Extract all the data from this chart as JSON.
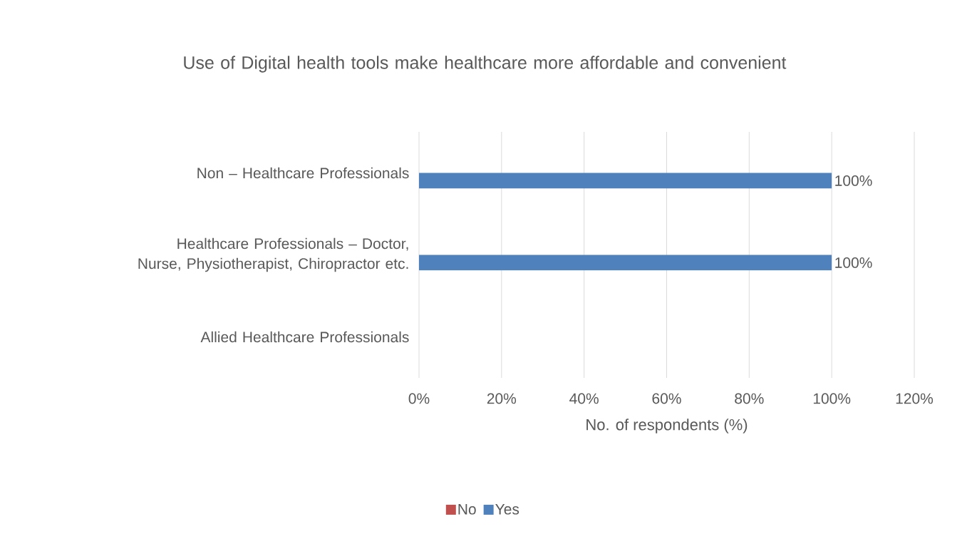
{
  "chart_data": {
    "type": "bar",
    "orientation": "horizontal",
    "title": "Use of Digital health tools make healthcare more affordable and convenient",
    "xlabel": "No. of respondents (%)",
    "categories": [
      "Non – Healthcare Professionals",
      "Healthcare Professionals – Doctor, Nurse, Physiotherapist, Chiropractor etc.",
      "Allied Healthcare Professionals"
    ],
    "series": [
      {
        "name": "No",
        "color": "#c0504d",
        "values": [
          null,
          null,
          null
        ]
      },
      {
        "name": "Yes",
        "color": "#4f81bd",
        "values": [
          100,
          100,
          null
        ],
        "value_labels": [
          "100%",
          "100%",
          null
        ]
      }
    ],
    "xlim": [
      0,
      120
    ],
    "xticks": [
      {
        "value": 0,
        "label": "0%"
      },
      {
        "value": 20,
        "label": "20%"
      },
      {
        "value": 40,
        "label": "40%"
      },
      {
        "value": 60,
        "label": "60%"
      },
      {
        "value": 80,
        "label": "80%"
      },
      {
        "value": 100,
        "label": "100%"
      },
      {
        "value": 120,
        "label": "120%"
      }
    ],
    "grid": "x",
    "legend": "bottom"
  }
}
